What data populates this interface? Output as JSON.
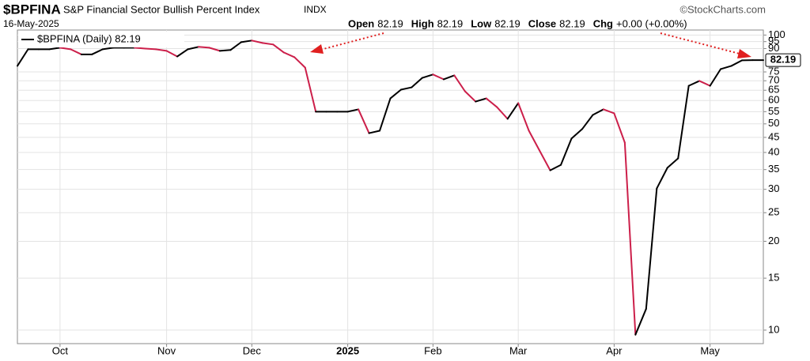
{
  "chart_data": {
    "type": "line",
    "symbol": "$BPFINA",
    "title": "S&P Financial Sector Bullish Percent Index",
    "exchange": "INDX",
    "source": "©StockCharts.com",
    "date": "16-May-2025",
    "quote": [
      {
        "label": "Open",
        "value": "82.19"
      },
      {
        "label": "High",
        "value": "82.19"
      },
      {
        "label": "Low",
        "value": "82.19"
      },
      {
        "label": "Close",
        "value": "82.19"
      },
      {
        "label": "Chg",
        "value": "+0.00 (+0.00%)"
      }
    ],
    "categories": [
      null,
      null,
      null,
      null,
      "Oct",
      null,
      null,
      null,
      null,
      null,
      null,
      null,
      null,
      null,
      "Nov",
      null,
      null,
      null,
      null,
      null,
      null,
      null,
      "Dec",
      null,
      null,
      null,
      null,
      null,
      null,
      null,
      null,
      "2025",
      null,
      null,
      null,
      null,
      null,
      null,
      null,
      "Feb",
      null,
      null,
      null,
      null,
      null,
      null,
      null,
      "Mar",
      null,
      null,
      null,
      null,
      null,
      null,
      null,
      null,
      "Apr",
      null,
      null,
      null,
      null,
      null,
      null,
      null,
      null,
      "May",
      null,
      null,
      null,
      null,
      null
    ],
    "series": [
      {
        "name": "$BPFINA (Daily) 82.19",
        "values": [
          78.6,
          89.5,
          89.5,
          89.5,
          90.6,
          89.5,
          86,
          86,
          89.5,
          90.6,
          90.6,
          90.6,
          90,
          89.5,
          88.4,
          84.6,
          89.5,
          91.2,
          90.6,
          88.4,
          89,
          94.6,
          95.8,
          94,
          92.9,
          87.3,
          84.1,
          77.6,
          55,
          55,
          55,
          55,
          56,
          46.5,
          47.4,
          61,
          65.3,
          66.5,
          71.6,
          73.5,
          70.8,
          73,
          64.5,
          59.5,
          61,
          57,
          52,
          58.8,
          47.4,
          40.6,
          34.8,
          36.3,
          44.6,
          48,
          53.6,
          56,
          54.3,
          43.2,
          9.65,
          11.8,
          30.2,
          35.5,
          38.2,
          67.3,
          69.9,
          67.3,
          76.7,
          78.6,
          82.1,
          82.19,
          82.19
        ]
      }
    ],
    "up_color": "#000000",
    "down_color": "#cc1f4a",
    "log_scale": true,
    "grid": true,
    "ylim": [
      9,
      104
    ],
    "yticks": [
      10,
      15,
      20,
      25,
      30,
      35,
      40,
      45,
      50,
      55,
      60,
      65,
      70,
      75,
      90,
      95,
      100
    ]
  }
}
